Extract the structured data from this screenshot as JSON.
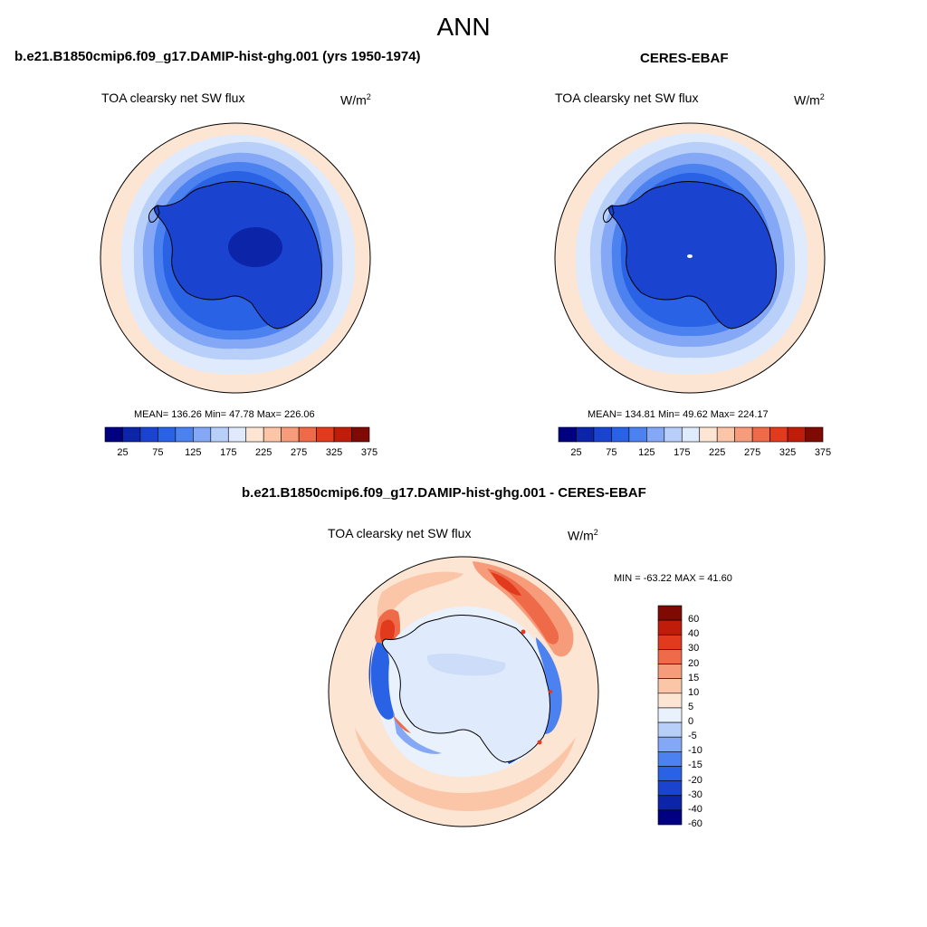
{
  "title": "ANN",
  "colors": {
    "abs_scale": [
      "#000080",
      "#0b24a8",
      "#1a44d0",
      "#2a62e6",
      "#4c82f0",
      "#84a8f5",
      "#b8cffa",
      "#dfeafc",
      "#fde5d4",
      "#fbc5a8",
      "#f69c7a",
      "#ef6a48",
      "#e23a1c",
      "#c01c0a",
      "#7e0a03"
    ],
    "diff_scale": [
      "#000080",
      "#0b24a8",
      "#1a44d0",
      "#2a62e6",
      "#4c82f0",
      "#84a8f5",
      "#b8cffa",
      "#e8f1fc",
      "#fde5d4",
      "#fbc5a8",
      "#f69c7a",
      "#ef6a48",
      "#e23a1c",
      "#c01c0a",
      "#7e0a03"
    ]
  },
  "panels": {
    "model": {
      "title": "b.e21.B1850cmip6.f09_g17.DAMIP-hist-ghg.001 (yrs 1950-1974)",
      "subtitle": "TOA clearsky net SW flux",
      "units_base": "W/m",
      "units_sup": "2",
      "stats": "MEAN= 136.26  Min=  47.78  Max= 226.06",
      "colorbar_labels": [
        "25",
        "75",
        "125",
        "175",
        "225",
        "275",
        "325",
        "375"
      ]
    },
    "obs": {
      "title": "CERES-EBAF",
      "subtitle": "TOA clearsky net SW flux",
      "units_base": "W/m",
      "units_sup": "2",
      "stats": "MEAN= 134.81  Min=  49.62  Max= 224.17",
      "colorbar_labels": [
        "25",
        "75",
        "125",
        "175",
        "225",
        "275",
        "325",
        "375"
      ]
    },
    "diff": {
      "title": "b.e21.B1850cmip6.f09_g17.DAMIP-hist-ghg.001 - CERES-EBAF",
      "subtitle": "TOA clearsky net SW flux",
      "units_base": "W/m",
      "units_sup": "2",
      "stats": "MIN = -63.22 MAX =  41.60",
      "colorbar_labels": [
        "60",
        "40",
        "30",
        "20",
        "15",
        "10",
        "5",
        "0",
        "-5",
        "-10",
        "-15",
        "-20",
        "-30",
        "-40",
        "-60"
      ]
    }
  }
}
